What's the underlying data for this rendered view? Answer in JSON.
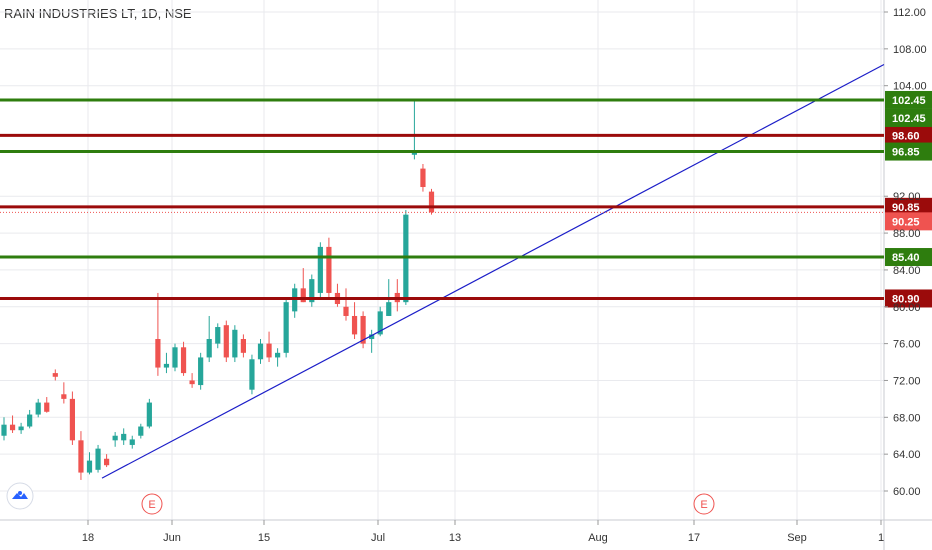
{
  "header": {
    "title": "RAIN INDUSTRIES LT, 1D, NSE"
  },
  "chart_data": {
    "type": "candlestick",
    "y_ticks": [
      "112.00",
      "108.00",
      "104.00",
      "92.00",
      "88.00",
      "84.00",
      "80.00",
      "76.00",
      "72.00",
      "68.00",
      "64.00",
      "60.00"
    ],
    "x_ticks": [
      "18",
      "Jun",
      "15",
      "Jul",
      "13",
      "Aug",
      "17",
      "Sep",
      "1"
    ],
    "earnings_markers": [
      "E",
      "E"
    ],
    "ylim": [
      57,
      113
    ],
    "levels": [
      {
        "value": 102.45,
        "label": "102.45",
        "color": "#2e7d0e"
      },
      {
        "value": 98.6,
        "label": "98.60",
        "color": "#9b0b0b"
      },
      {
        "value": 96.85,
        "label": "96.85",
        "color": "#2e7d0e"
      },
      {
        "value": 90.85,
        "label": "90.85",
        "color": "#9b0b0b"
      },
      {
        "value": 85.4,
        "label": "85.40",
        "color": "#2e7d0e"
      },
      {
        "value": 80.9,
        "label": "80.90",
        "color": "#9b0b0b"
      }
    ],
    "last_price": {
      "value": 90.25,
      "label": "90.25",
      "color": "#ef5350"
    },
    "high_label": {
      "value": 102.45,
      "label": "102.45",
      "color": "#2e7d0e"
    },
    "candles": [
      [
        66.0,
        68.0,
        65.5,
        67.2
      ],
      [
        67.2,
        68.2,
        66.3,
        66.6
      ],
      [
        66.6,
        67.4,
        66.2,
        67.0
      ],
      [
        67.0,
        68.8,
        66.8,
        68.3
      ],
      [
        68.3,
        70.0,
        68.0,
        69.6
      ],
      [
        69.6,
        70.2,
        68.5,
        68.6
      ],
      [
        72.8,
        73.2,
        72.0,
        72.4
      ],
      [
        70.5,
        71.8,
        69.5,
        70.0
      ],
      [
        70.0,
        70.8,
        65.0,
        65.5
      ],
      [
        65.5,
        66.5,
        61.2,
        62.0
      ],
      [
        62.0,
        64.2,
        61.8,
        63.3
      ],
      [
        62.3,
        65.0,
        62.0,
        64.6
      ],
      [
        63.5,
        64.0,
        62.6,
        62.8
      ],
      [
        65.5,
        66.4,
        64.8,
        66.0
      ],
      [
        65.5,
        66.8,
        65.0,
        66.2
      ],
      [
        65.0,
        66.0,
        64.6,
        65.6
      ],
      [
        66.0,
        67.3,
        65.7,
        67.0
      ],
      [
        67.0,
        70.0,
        66.8,
        69.6
      ],
      [
        76.5,
        81.5,
        72.5,
        73.4
      ],
      [
        73.4,
        75.0,
        72.8,
        73.8
      ],
      [
        73.4,
        76.0,
        73.0,
        75.6
      ],
      [
        75.6,
        76.2,
        72.5,
        72.8
      ],
      [
        72.0,
        72.8,
        71.2,
        71.6
      ],
      [
        71.5,
        75.0,
        71.0,
        74.5
      ],
      [
        74.5,
        79.0,
        74.0,
        76.5
      ],
      [
        76.0,
        78.2,
        75.5,
        77.8
      ],
      [
        78.0,
        78.5,
        74.0,
        74.5
      ],
      [
        74.5,
        78.0,
        74.0,
        77.5
      ],
      [
        76.5,
        77.0,
        74.5,
        75.0
      ],
      [
        71.0,
        74.8,
        70.5,
        74.3
      ],
      [
        74.3,
        76.5,
        73.8,
        76.0
      ],
      [
        76.0,
        77.3,
        74.0,
        74.5
      ],
      [
        74.5,
        75.5,
        73.5,
        75.0
      ],
      [
        75.0,
        81.0,
        74.5,
        80.5
      ],
      [
        79.5,
        82.5,
        78.8,
        82.0
      ],
      [
        82.0,
        84.2,
        80.5,
        80.5
      ],
      [
        80.5,
        83.5,
        80.0,
        83.0
      ],
      [
        81.5,
        87.0,
        81.0,
        86.5
      ],
      [
        86.5,
        87.5,
        81.0,
        81.5
      ],
      [
        81.5,
        82.5,
        80.0,
        80.3
      ],
      [
        80.0,
        82.0,
        78.5,
        79.0
      ],
      [
        79.0,
        80.5,
        76.5,
        77.0
      ],
      [
        79.0,
        79.5,
        75.5,
        76.0
      ],
      [
        76.5,
        77.5,
        75.0,
        77.0
      ],
      [
        77.0,
        80.0,
        76.8,
        79.5
      ],
      [
        79.0,
        83.0,
        79.0,
        80.5
      ],
      [
        81.5,
        83.0,
        79.5,
        80.5
      ],
      [
        80.5,
        90.5,
        80.2,
        90.0
      ],
      [
        96.5,
        102.45,
        96.0,
        96.85
      ],
      [
        95.0,
        95.5,
        92.5,
        93.0
      ],
      [
        92.5,
        92.8,
        90.0,
        90.25
      ]
    ]
  },
  "colors": {
    "up": "#26a69a",
    "down": "#ef5350",
    "trend": "#1c1ec8",
    "bg": "#ffffff",
    "grid": "#e9eaee"
  }
}
